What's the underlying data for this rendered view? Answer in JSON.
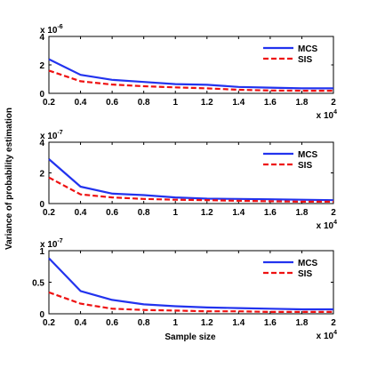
{
  "chart_data": {
    "type": "line",
    "ylabel": "Variance of probability estimation",
    "xlabel": "Sample size",
    "x_multiplier": {
      "base": "x 10",
      "exp": "4"
    },
    "x": [
      0.2,
      0.4,
      0.6,
      0.8,
      1.0,
      1.2,
      1.4,
      1.6,
      1.8,
      2.0
    ],
    "xticks": [
      "0.2",
      "0.4",
      "0.6",
      "0.8",
      "1",
      "1.2",
      "1.4",
      "1.6",
      "1.8",
      "2"
    ],
    "xlim": [
      0.2,
      2.0
    ],
    "grid": false,
    "legend_position": "top-right",
    "panels": [
      {
        "y_multiplier": {
          "base": "x 10",
          "exp": "-6"
        },
        "ylim": [
          0,
          4
        ],
        "yticks": [
          "0",
          "2",
          "4"
        ],
        "series": [
          {
            "name": "MCS",
            "color": "#2233ee",
            "style": "solid",
            "values": [
              2.4,
              1.3,
              0.95,
              0.8,
              0.65,
              0.6,
              0.45,
              0.4,
              0.35,
              0.35
            ]
          },
          {
            "name": "SIS",
            "color": "#ee1111",
            "style": "dashed",
            "values": [
              1.6,
              0.85,
              0.62,
              0.5,
              0.42,
              0.35,
              0.25,
              0.2,
              0.18,
              0.18
            ]
          }
        ]
      },
      {
        "y_multiplier": {
          "base": "x 10",
          "exp": "-7"
        },
        "ylim": [
          0,
          4
        ],
        "yticks": [
          "0",
          "2",
          "4"
        ],
        "series": [
          {
            "name": "MCS",
            "color": "#2233ee",
            "style": "solid",
            "values": [
              2.9,
              1.1,
              0.65,
              0.55,
              0.4,
              0.32,
              0.3,
              0.28,
              0.25,
              0.22
            ]
          },
          {
            "name": "SIS",
            "color": "#ee1111",
            "style": "dashed",
            "values": [
              1.7,
              0.6,
              0.4,
              0.3,
              0.25,
              0.22,
              0.18,
              0.15,
              0.12,
              0.12
            ]
          }
        ]
      },
      {
        "y_multiplier": {
          "base": "x 10",
          "exp": "-7"
        },
        "ylim": [
          0,
          1
        ],
        "yticks": [
          "0",
          "0.5",
          "1"
        ],
        "series": [
          {
            "name": "MCS",
            "color": "#2233ee",
            "style": "solid",
            "values": [
              0.88,
              0.36,
              0.22,
              0.15,
              0.12,
              0.1,
              0.09,
              0.08,
              0.07,
              0.07
            ]
          },
          {
            "name": "SIS",
            "color": "#ee1111",
            "style": "dashed",
            "values": [
              0.34,
              0.16,
              0.08,
              0.06,
              0.05,
              0.04,
              0.04,
              0.03,
              0.03,
              0.03
            ]
          }
        ]
      }
    ]
  }
}
